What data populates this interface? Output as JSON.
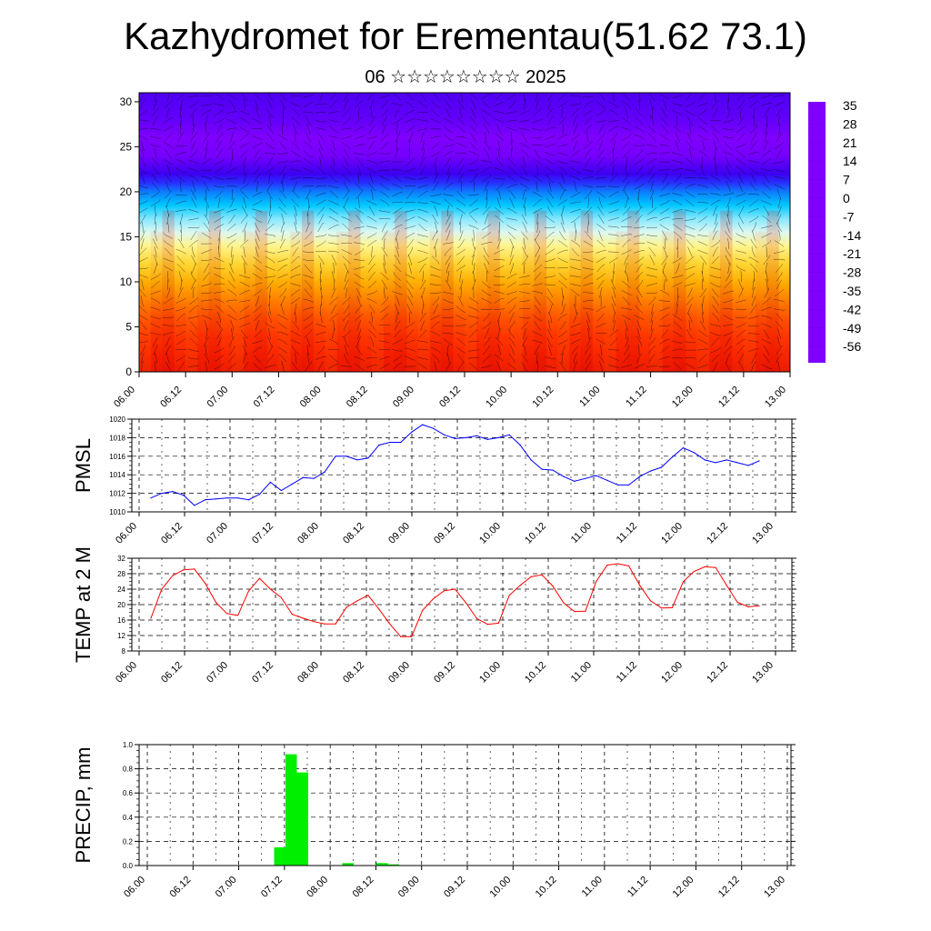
{
  "title": "Kazhydromet for Erementau(51.62 73.1)",
  "subtitle": "06 ☆☆☆☆☆☆☆☆ 2025",
  "time_labels": [
    "06.00",
    "06.12",
    "07.00",
    "07.12",
    "08.00",
    "08.12",
    "09.00",
    "09.12",
    "10.00",
    "10.12",
    "11.00",
    "11.12",
    "12.00",
    "12.12",
    "13.00"
  ],
  "chart_data": [
    {
      "type": "heatmap",
      "y_ticks": [
        "0",
        "5",
        "10",
        "15",
        "20",
        "25",
        "30"
      ],
      "ylim": [
        0,
        31
      ],
      "colorbar_labels": [
        "35",
        "28",
        "21",
        "14",
        "7",
        "0",
        "-7",
        "-14",
        "-21",
        "-28",
        "-35",
        "-42",
        "-49",
        "-56"
      ],
      "colorbar_range": [
        -63,
        38
      ],
      "profile": [
        [
          0,
          24
        ],
        [
          2,
          22
        ],
        [
          4,
          20
        ],
        [
          6,
          17
        ],
        [
          8,
          12
        ],
        [
          10,
          6
        ],
        [
          12,
          -1
        ],
        [
          14,
          -8
        ],
        [
          15.5,
          -13
        ],
        [
          17,
          -20
        ],
        [
          18.5,
          -28
        ],
        [
          20,
          -38
        ],
        [
          21,
          -48
        ],
        [
          22,
          -56
        ],
        [
          24,
          -62
        ],
        [
          26,
          -64
        ],
        [
          28,
          -60
        ],
        [
          31,
          -58
        ]
      ],
      "colors": {
        "cold": "#5a00e6",
        "warm": "#e00000",
        "mid": "#ffff80"
      }
    },
    {
      "type": "line",
      "ylabel": "PMSL",
      "y_ticks": [
        "1010",
        "1012",
        "1014",
        "1016",
        "1018",
        "1020"
      ],
      "ylim": [
        1010,
        1020
      ],
      "line_color": "#0000ff",
      "values": [
        1011.5,
        1012.0,
        1012.2,
        1011.8,
        1010.7,
        1011.3,
        1011.4,
        1011.5,
        1011.5,
        1011.3,
        1011.9,
        1013.2,
        1012.3,
        1013.0,
        1013.7,
        1013.6,
        1014.3,
        1016.0,
        1016.0,
        1015.6,
        1015.8,
        1017.2,
        1017.5,
        1017.5,
        1018.6,
        1019.4,
        1019.0,
        1018.3,
        1017.9,
        1018.0,
        1018.2,
        1017.8,
        1018.0,
        1018.3,
        1017.2,
        1015.6,
        1014.6,
        1014.5,
        1013.8,
        1013.3,
        1013.6,
        1013.9,
        1013.4,
        1012.9,
        1012.9,
        1013.8,
        1014.4,
        1014.8,
        1015.9,
        1016.9,
        1016.4,
        1015.6,
        1015.3,
        1015.6,
        1015.3,
        1015.0,
        1015.5
      ]
    },
    {
      "type": "line",
      "ylabel": "TEMP at 2 M",
      "y_ticks": [
        "8",
        "12",
        "16",
        "20",
        "24",
        "28",
        "32"
      ],
      "ylim": [
        8,
        32
      ],
      "line_color": "#ff0000",
      "values": [
        16.5,
        24.0,
        27.5,
        29.0,
        29.2,
        25.5,
        20.5,
        17.7,
        17.2,
        23.5,
        26.8,
        24.0,
        21.8,
        17.5,
        16.5,
        15.6,
        15.0,
        15.0,
        19.3,
        21.0,
        22.4,
        18.8,
        15.0,
        11.7,
        11.7,
        18.5,
        21.5,
        23.6,
        24.0,
        20.5,
        16.4,
        14.9,
        15.2,
        22.4,
        25.0,
        27.2,
        27.7,
        24.8,
        20.4,
        18.2,
        18.3,
        26.0,
        30.2,
        30.6,
        30.0,
        25.0,
        21.0,
        19.1,
        19.2,
        25.9,
        28.6,
        29.8,
        29.6,
        25.0,
        20.6,
        19.4,
        19.7
      ]
    },
    {
      "type": "bar",
      "ylabel": "PRECIP, mm",
      "y_ticks": [
        "0.0",
        "0.2",
        "0.4",
        "0.6",
        "0.8",
        "1.0"
      ],
      "ylim": [
        0,
        1
      ],
      "bar_color": "#00ee00",
      "values": [
        0,
        0,
        0,
        0,
        0,
        0,
        0,
        0,
        0,
        0,
        0,
        0.15,
        0.92,
        0.77,
        0,
        0,
        0,
        0.02,
        0,
        0,
        0.02,
        0.01,
        0,
        0,
        0,
        0,
        0,
        0,
        0,
        0,
        0,
        0,
        0,
        0,
        0,
        0,
        0,
        0,
        0,
        0,
        0,
        0,
        0,
        0,
        0,
        0,
        0,
        0,
        0,
        0,
        0,
        0,
        0,
        0,
        0,
        0
      ]
    }
  ]
}
